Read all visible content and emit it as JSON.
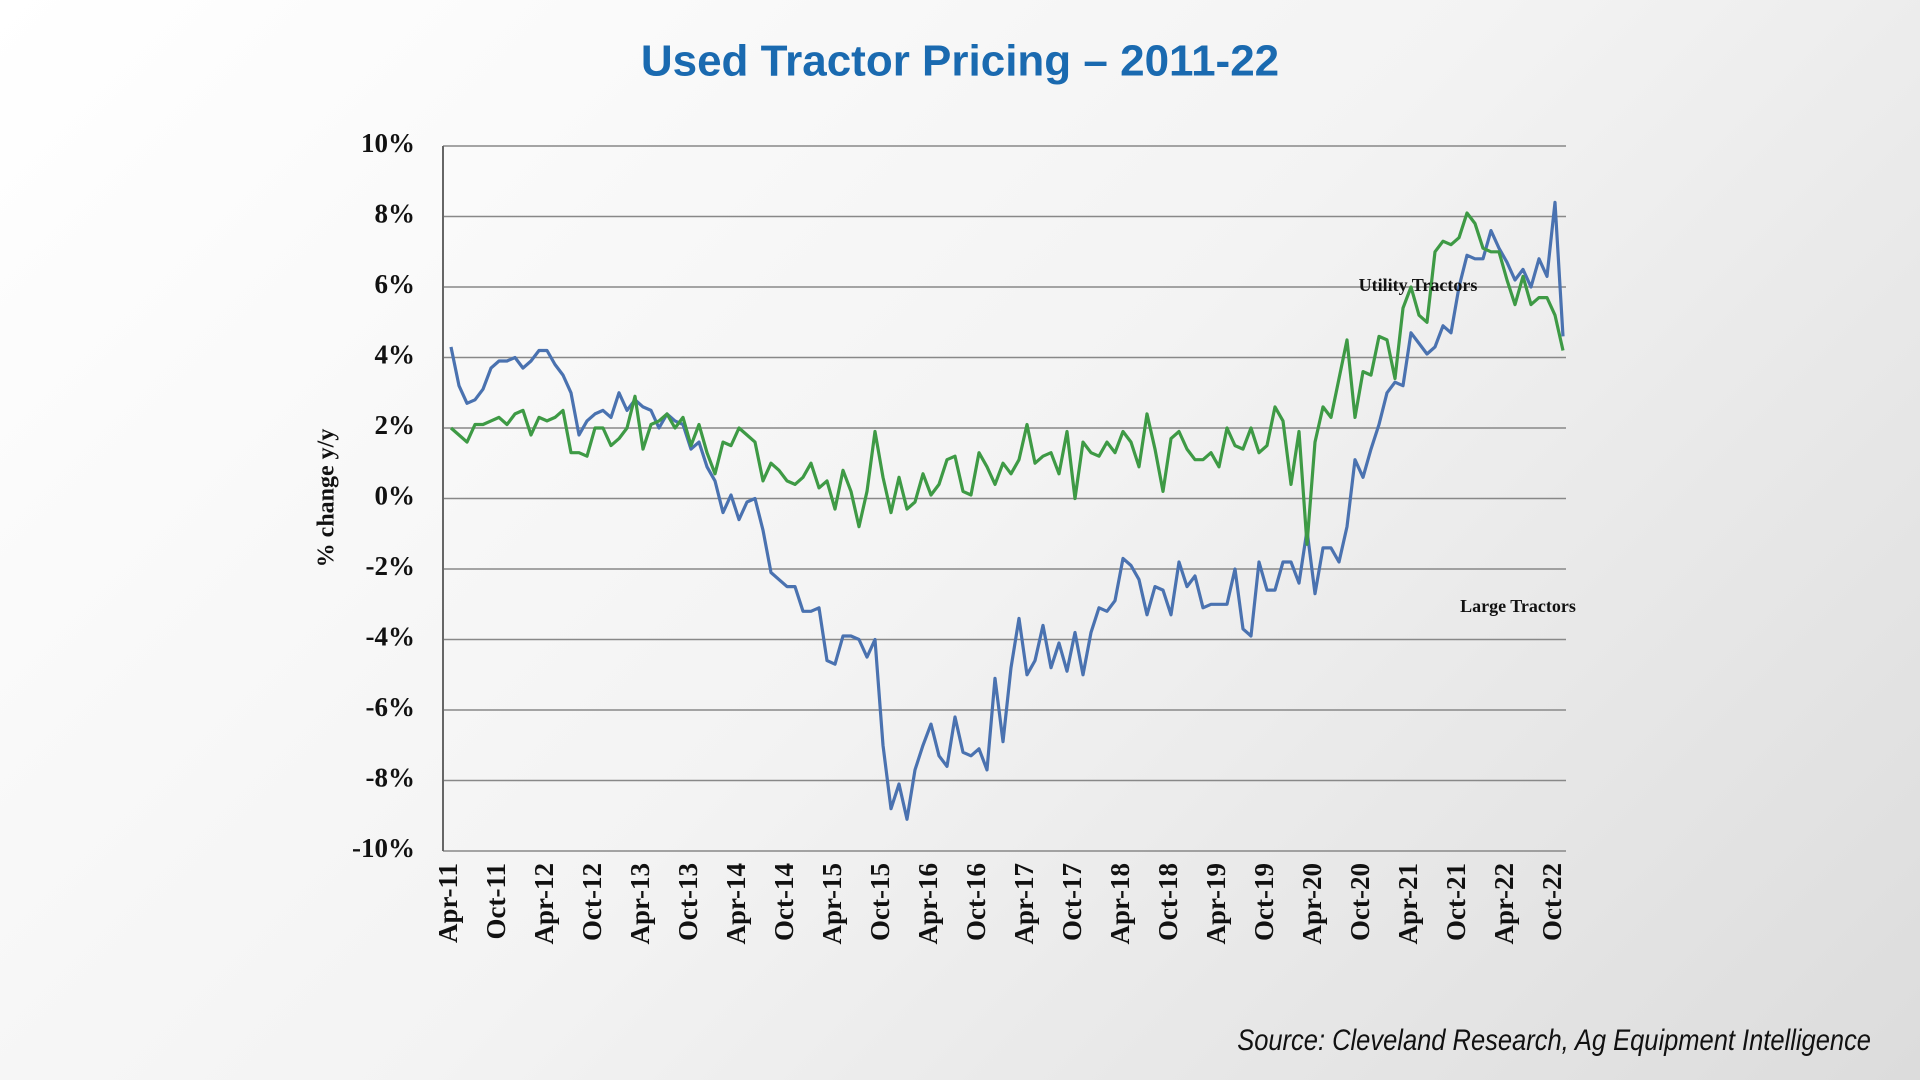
{
  "chart_data": {
    "type": "line",
    "title": "Used Tractor Pricing – 2011-22",
    "y_label": "% change y/y",
    "source": "Source: Cleveland Research, Ag Equipment Intelligence",
    "categories": [
      "Apr-11",
      null,
      null,
      null,
      null,
      null,
      "Oct-11",
      null,
      null,
      null,
      null,
      null,
      "Apr-12",
      null,
      null,
      null,
      null,
      null,
      "Oct-12",
      null,
      null,
      null,
      null,
      null,
      "Apr-13",
      null,
      null,
      null,
      null,
      null,
      "Oct-13",
      null,
      null,
      null,
      null,
      null,
      "Apr-14",
      null,
      null,
      null,
      null,
      null,
      "Oct-14",
      null,
      null,
      null,
      null,
      null,
      "Apr-15",
      null,
      null,
      null,
      null,
      null,
      "Oct-15",
      null,
      null,
      null,
      null,
      null,
      "Apr-16",
      null,
      null,
      null,
      null,
      null,
      "Oct-16",
      null,
      null,
      null,
      null,
      null,
      "Apr-17",
      null,
      null,
      null,
      null,
      null,
      "Oct-17",
      null,
      null,
      null,
      null,
      null,
      "Apr-18",
      null,
      null,
      null,
      null,
      null,
      "Oct-18",
      null,
      null,
      null,
      null,
      null,
      "Apr-19",
      null,
      null,
      null,
      null,
      null,
      "Oct-19",
      null,
      null,
      null,
      null,
      null,
      "Apr-20",
      null,
      null,
      null,
      null,
      null,
      "Oct-20",
      null,
      null,
      null,
      null,
      null,
      "Apr-21",
      null,
      null,
      null,
      null,
      null,
      "Oct-21",
      null,
      null,
      null,
      null,
      null,
      "Apr-22",
      null,
      null,
      null,
      null,
      null,
      "Oct-22",
      null
    ],
    "series": [
      {
        "name": "Large Tractors",
        "color": "#4a72b0",
        "values": [
          4.3,
          3.2,
          2.7,
          2.8,
          3.1,
          3.7,
          3.9,
          3.9,
          4.0,
          3.7,
          3.9,
          4.2,
          4.2,
          3.8,
          3.5,
          3.0,
          1.8,
          2.2,
          2.4,
          2.5,
          2.3,
          3.0,
          2.5,
          2.8,
          2.6,
          2.5,
          2.0,
          2.4,
          2.2,
          2.1,
          1.4,
          1.6,
          0.9,
          0.5,
          -0.4,
          0.1,
          -0.6,
          -0.1,
          0.0,
          -0.9,
          -2.1,
          -2.3,
          -2.5,
          -2.5,
          -3.2,
          -3.2,
          -3.1,
          -4.6,
          -4.7,
          -3.9,
          -3.9,
          -4.0,
          -4.5,
          -4.0,
          -7.0,
          -8.8,
          -8.1,
          -9.1,
          -7.7,
          -7.0,
          -6.4,
          -7.3,
          -7.6,
          -6.2,
          -7.2,
          -7.3,
          -7.1,
          -7.7,
          -5.1,
          -6.9,
          -4.8,
          -3.4,
          -5.0,
          -4.6,
          -3.6,
          -4.8,
          -4.1,
          -4.9,
          -3.8,
          -5.0,
          -3.8,
          -3.1,
          -3.2,
          -2.9,
          -1.7,
          -1.9,
          -2.3,
          -3.3,
          -2.5,
          -2.6,
          -3.3,
          -1.8,
          -2.5,
          -2.2,
          -3.1,
          -3.0,
          -3.0,
          -3.0,
          -2.0,
          -3.7,
          -3.9,
          -1.8,
          -2.6,
          -2.6,
          -1.8,
          -1.8,
          -2.4,
          -0.9,
          -2.7,
          -1.4,
          -1.4,
          -1.8,
          -0.8,
          1.1,
          0.6,
          1.4,
          2.1,
          3.0,
          3.3,
          3.2,
          4.7,
          4.4,
          4.1,
          4.3,
          4.9,
          4.7,
          6.0,
          6.9,
          6.8,
          6.8,
          7.6,
          7.1,
          6.7,
          6.2,
          6.5,
          6.0,
          6.8,
          6.3,
          8.4,
          4.6
        ]
      },
      {
        "name": "Utility Tractors",
        "color": "#3e9a45",
        "values": [
          2.0,
          1.8,
          1.6,
          2.1,
          2.1,
          2.2,
          2.3,
          2.1,
          2.4,
          2.5,
          1.8,
          2.3,
          2.2,
          2.3,
          2.5,
          1.3,
          1.3,
          1.2,
          2.0,
          2.0,
          1.5,
          1.7,
          2.0,
          2.9,
          1.4,
          2.1,
          2.2,
          2.4,
          2.0,
          2.3,
          1.5,
          2.1,
          1.3,
          0.7,
          1.6,
          1.5,
          2.0,
          1.8,
          1.6,
          0.5,
          1.0,
          0.8,
          0.5,
          0.4,
          0.6,
          1.0,
          0.3,
          0.5,
          -0.3,
          0.8,
          0.2,
          -0.8,
          0.2,
          1.9,
          0.6,
          -0.4,
          0.6,
          -0.3,
          -0.1,
          0.7,
          0.1,
          0.4,
          1.1,
          1.2,
          0.2,
          0.1,
          1.3,
          0.9,
          0.4,
          1.0,
          0.7,
          1.1,
          2.1,
          1.0,
          1.2,
          1.3,
          0.7,
          1.9,
          0.0,
          1.6,
          1.3,
          1.2,
          1.6,
          1.3,
          1.9,
          1.6,
          0.9,
          2.4,
          1.4,
          0.2,
          1.7,
          1.9,
          1.4,
          1.1,
          1.1,
          1.3,
          0.9,
          2.0,
          1.5,
          1.4,
          2.0,
          1.3,
          1.5,
          2.6,
          2.2,
          0.4,
          1.9,
          -1.3,
          1.6,
          2.6,
          2.3,
          3.4,
          4.5,
          2.3,
          3.6,
          3.5,
          4.6,
          4.5,
          3.4,
          5.4,
          6.0,
          5.2,
          5.0,
          7.0,
          7.3,
          7.2,
          7.4,
          8.1,
          7.8,
          7.1,
          7.0,
          7.0,
          6.2,
          5.5,
          6.3,
          5.5,
          5.7,
          5.7,
          5.2,
          4.2
        ]
      }
    ],
    "ylim": [
      -10,
      10
    ],
    "yticks": [
      {
        "value": -10,
        "label": "-10%"
      },
      {
        "value": -8,
        "label": "-8%"
      },
      {
        "value": -6,
        "label": "-6%"
      },
      {
        "value": -4,
        "label": "-4%"
      },
      {
        "value": -2,
        "label": "-2%"
      },
      {
        "value": 0,
        "label": "0%"
      },
      {
        "value": 2,
        "label": "2%"
      },
      {
        "value": 4,
        "label": "4%"
      },
      {
        "value": 6,
        "label": "6%"
      },
      {
        "value": 8,
        "label": "8%"
      },
      {
        "value": 10,
        "label": "10%"
      }
    ],
    "grid": true
  }
}
